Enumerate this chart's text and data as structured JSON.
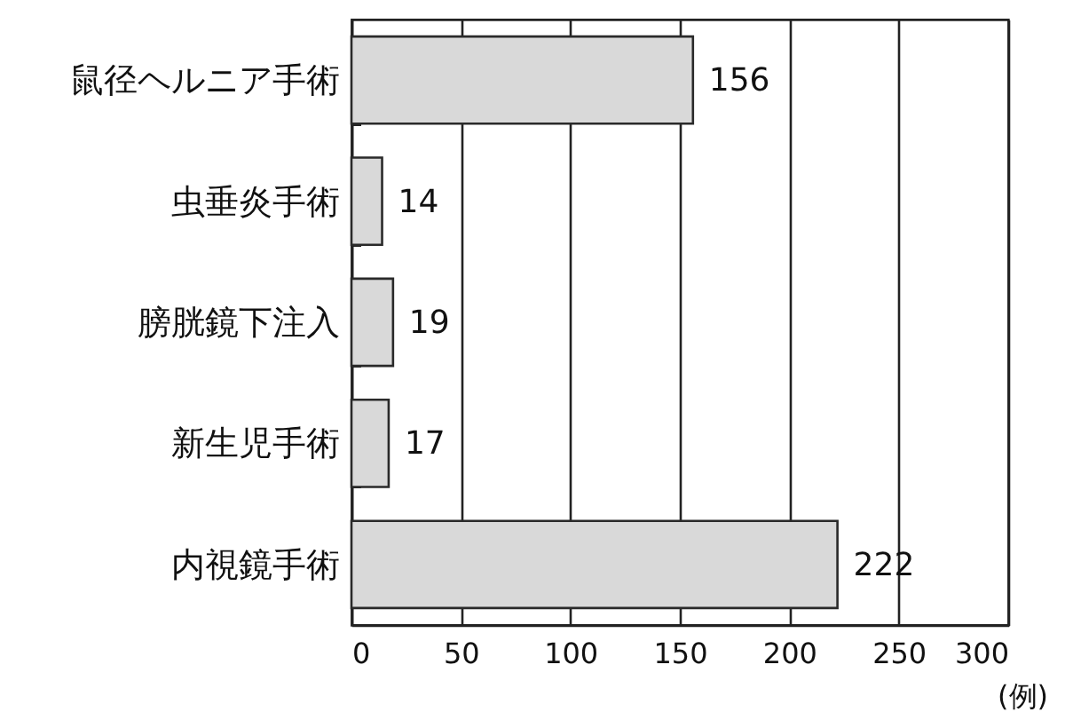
{
  "chart_data": {
    "type": "bar",
    "orientation": "horizontal",
    "categories": [
      "鼠径ヘルニア手術",
      "虫垂炎手術",
      "膀胱鏡下注入",
      "新生児手術",
      "内視鏡手術"
    ],
    "values": [
      156,
      14,
      19,
      17,
      222
    ],
    "color": "#d9d9d9",
    "xlim": [
      0,
      300
    ],
    "xticks": [
      0,
      50,
      100,
      150,
      200,
      250,
      300
    ],
    "xlabel": "(例)",
    "grid": "x",
    "data_labels": true
  }
}
